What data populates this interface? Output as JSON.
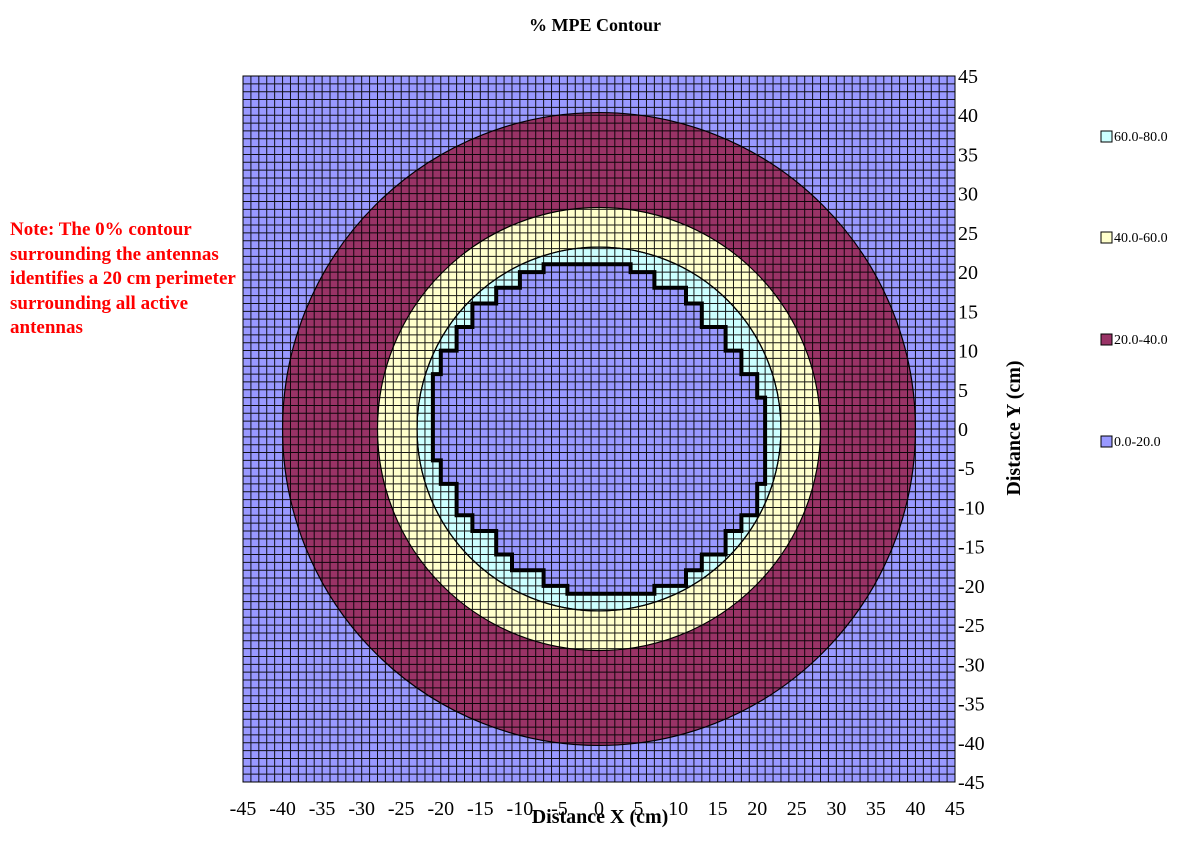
{
  "chart_data": {
    "type": "contour",
    "title": "% MPE Contour",
    "xlabel": "Distance X (cm)",
    "ylabel": "Distance Y (cm)",
    "xlim": [
      -45,
      45
    ],
    "ylim": [
      -45,
      45
    ],
    "grid_step_cm": 1,
    "grid": true,
    "x_ticks": [
      -45,
      -40,
      -35,
      -30,
      -25,
      -20,
      -15,
      -10,
      -5,
      0,
      5,
      10,
      15,
      20,
      25,
      30,
      35,
      40,
      45
    ],
    "y_ticks": [
      45,
      40,
      35,
      30,
      25,
      20,
      15,
      10,
      5,
      0,
      -5,
      -10,
      -15,
      -20,
      -25,
      -30,
      -35,
      -40,
      -45
    ],
    "y_axis_position": "right",
    "legend_position": "right",
    "levels": [
      {
        "label": "60.0-80.0",
        "color": "#ccffff"
      },
      {
        "label": "40.0-60.0",
        "color": "#ffffcc"
      },
      {
        "label": "20.0-40.0",
        "color": "#993366"
      },
      {
        "label": "0.0-20.0",
        "color": "#9999ff"
      }
    ],
    "regions": [
      {
        "level": "0.0-20.0",
        "shape": "background"
      },
      {
        "level": "20.0-40.0",
        "shape": "circle",
        "center": [
          0,
          0
        ],
        "radius_cm": 40
      },
      {
        "level": "40.0-60.0",
        "shape": "circle",
        "center": [
          0,
          0
        ],
        "radius_cm": 28
      },
      {
        "level": "60.0-80.0",
        "shape": "circle",
        "center": [
          0,
          0
        ],
        "radius_cm": 23
      },
      {
        "level": "0.0-20.0",
        "shape": "stepped-polygon",
        "label": "20 cm perimeter",
        "radius_cm": 21
      }
    ],
    "boundary_lines": [
      {
        "shape": "circle",
        "center": [
          0,
          0
        ],
        "radius_cm": 23
      }
    ]
  },
  "annotation": {
    "note": "Note: The 0% contour surrounding the antennas identifies a 20 cm perimeter surrounding all active antennas"
  }
}
